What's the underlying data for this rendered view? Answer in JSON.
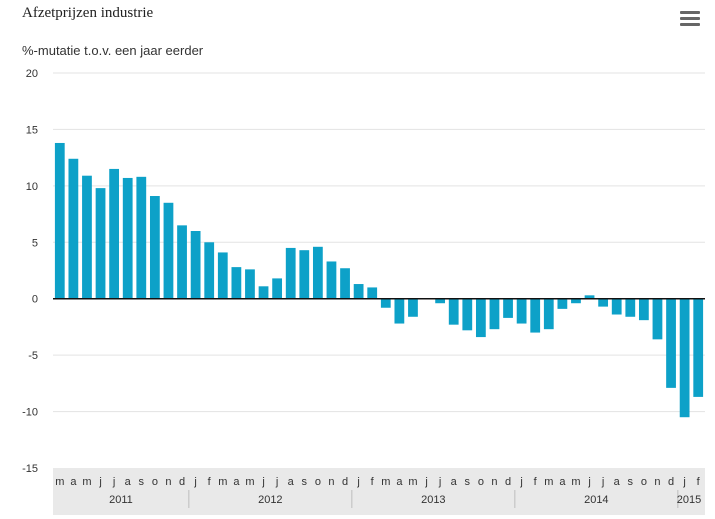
{
  "chart_data": {
    "type": "bar",
    "title": "Afzetprijzen industrie",
    "ylabel": "%-mutatie t.o.v. een jaar eerder",
    "ylim": [
      -15,
      20
    ],
    "yticks": [
      20,
      15,
      10,
      5,
      0,
      -5,
      -10,
      -15
    ],
    "grid": true,
    "bar_color": "#0da1c8",
    "categories": [
      "m",
      "a",
      "m",
      "j",
      "j",
      "a",
      "s",
      "o",
      "n",
      "d",
      "j",
      "f",
      "m",
      "a",
      "m",
      "j",
      "j",
      "a",
      "s",
      "o",
      "n",
      "d",
      "j",
      "f",
      "m",
      "a",
      "m",
      "j",
      "j",
      "a",
      "s",
      "o",
      "n",
      "d",
      "j",
      "f",
      "m",
      "a",
      "m",
      "j",
      "j",
      "a",
      "s",
      "o",
      "n",
      "d",
      "j",
      "f"
    ],
    "years": [
      {
        "label": "2011",
        "start": 0,
        "end": 9
      },
      {
        "label": "2012",
        "start": 10,
        "end": 21
      },
      {
        "label": "2013",
        "start": 22,
        "end": 33
      },
      {
        "label": "2014",
        "start": 34,
        "end": 45
      },
      {
        "label": "2015",
        "start": 46,
        "end": 47
      }
    ],
    "values": [
      13.8,
      12.4,
      10.9,
      9.8,
      11.5,
      10.7,
      10.8,
      9.1,
      8.5,
      6.5,
      6.0,
      5.0,
      4.1,
      2.8,
      2.6,
      1.1,
      1.8,
      4.5,
      4.3,
      4.6,
      3.3,
      2.7,
      1.3,
      1.0,
      -0.8,
      -2.2,
      -1.6,
      0.0,
      -0.4,
      -2.3,
      -2.8,
      -3.4,
      -2.7,
      -1.7,
      -2.2,
      -3.0,
      -2.7,
      -0.9,
      -0.4,
      0.3,
      -0.7,
      -1.4,
      -1.6,
      -1.9,
      -3.6,
      -7.9,
      -10.5,
      -8.7
    ]
  }
}
